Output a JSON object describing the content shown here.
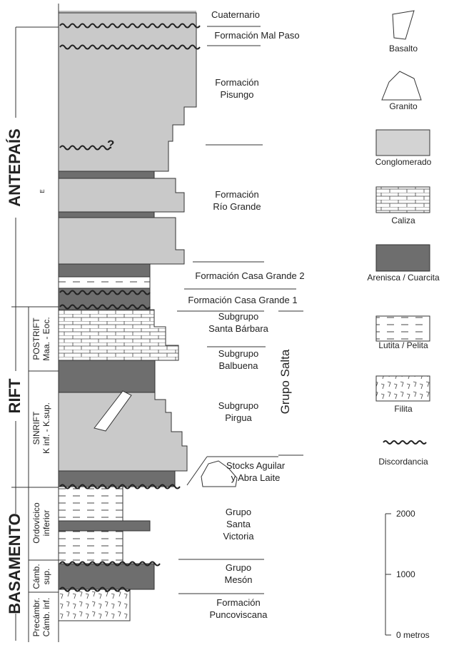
{
  "stages": [
    "ANTEPAÍS",
    "RIFT",
    "BASAMENTO"
  ],
  "phases": [
    [
      "POSTRIFT",
      "Maa. - Eoc."
    ],
    [
      "SINRIFT",
      "K inf. - K.sup."
    ],
    [
      "Ordovícico",
      "inferior"
    ],
    [
      "Cámb.",
      "sup."
    ],
    [
      "Precámbr.",
      "Cámb. inf."
    ]
  ],
  "age_mark": "E",
  "question_mark": "?",
  "units": [
    [
      "Cuaternario"
    ],
    [
      "Formación Mal Paso"
    ],
    [
      "Formación",
      "Pisungo"
    ],
    [
      "Formación",
      "Río Grande"
    ],
    [
      "Formación Casa Grande 2"
    ],
    [
      "Formación Casa Grande 1"
    ],
    [
      "Subgrupo",
      "Santa Bárbara"
    ],
    [
      "Subgrupo",
      "Balbuena"
    ],
    [
      "Subgrupo",
      "Pirgua"
    ],
    [
      "Stocks Aguilar",
      "y Abra Laite"
    ],
    [
      "Grupo",
      "Santa",
      "Victoria"
    ],
    [
      "Grupo",
      "Mesón"
    ],
    [
      "Formación",
      "Puncoviscana"
    ]
  ],
  "group": "Grupo Salta",
  "legend": [
    "Basalto",
    "Granito",
    "Conglomerado",
    "Caliza",
    "Arenisca / Cuarcita",
    "Lutita / Pelita",
    "Filita",
    "Discordancia"
  ],
  "scale": [
    "2000",
    "1000",
    "0 metros"
  ]
}
